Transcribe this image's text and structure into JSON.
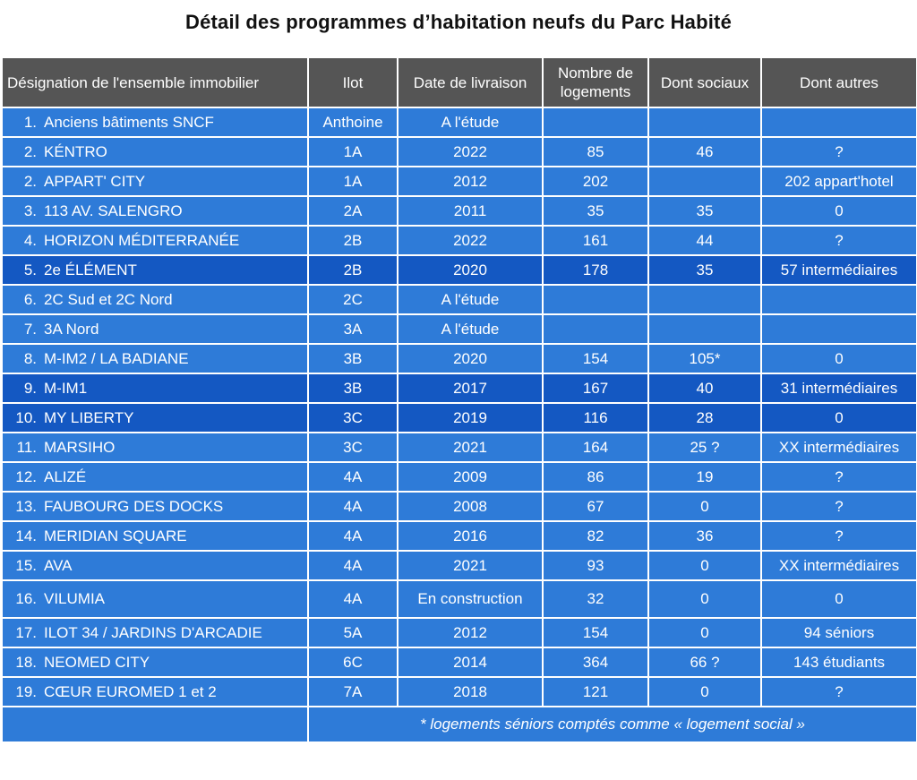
{
  "title": "Détail des programmes d’habitation neufs du Parc Habité",
  "headers": {
    "designation": "Désignation de l'ensemble immobilier",
    "ilot": "Ilot",
    "date": "Date de livraison",
    "nombre_line1": "Nombre de",
    "nombre_line2": "logements",
    "sociaux": "Dont sociaux",
    "autres": "Dont autres"
  },
  "rows": [
    {
      "num": "1.",
      "name": "Anciens bâtiments SNCF",
      "ilot": "Anthoine",
      "date": "A l'étude",
      "nombre": "",
      "sociaux": "",
      "autres": ""
    },
    {
      "num": "2.",
      "name": "KÉNTRO",
      "ilot": "1A",
      "date": "2022",
      "nombre": "85",
      "sociaux": "46",
      "autres": "?"
    },
    {
      "num": "2.",
      "name": "APPART' CITY",
      "ilot": "1A",
      "date": "2012",
      "nombre": "202",
      "sociaux": "",
      "autres": "202 appart'hotel"
    },
    {
      "num": "3.",
      "name": "113 AV. SALENGRO",
      "ilot": "2A",
      "date": "2011",
      "nombre": "35",
      "sociaux": "35",
      "autres": "0"
    },
    {
      "num": "4.",
      "name": "HORIZON MÉDITERRANÉE",
      "ilot": "2B",
      "date": "2022",
      "nombre": "161",
      "sociaux": "44",
      "autres": "?"
    },
    {
      "num": "5.",
      "name": "2e ÉLÉMENT",
      "ilot": "2B",
      "date": "2020",
      "nombre": "178",
      "sociaux": "35",
      "autres": "57 intermédiaires"
    },
    {
      "num": "6.",
      "name": "2C Sud et 2C Nord",
      "ilot": "2C",
      "date": "A l'étude",
      "nombre": "",
      "sociaux": "",
      "autres": ""
    },
    {
      "num": "7.",
      "name": "3A Nord",
      "ilot": "3A",
      "date": "A l'étude",
      "nombre": "",
      "sociaux": "",
      "autres": ""
    },
    {
      "num": "8.",
      "name": "M-IM2 / LA BADIANE",
      "ilot": "3B",
      "date": "2020",
      "nombre": "154",
      "sociaux": "105*",
      "autres": "0"
    },
    {
      "num": "9.",
      "name": "M-IM1",
      "ilot": "3B",
      "date": "2017",
      "nombre": "167",
      "sociaux": "40",
      "autres": "31 intermédiaires"
    },
    {
      "num": "10.",
      "name": "MY LIBERTY",
      "ilot": "3C",
      "date": "2019",
      "nombre": "116",
      "sociaux": "28",
      "autres": "0"
    },
    {
      "num": "11.",
      "name": "MARSIHO",
      "ilot": "3C",
      "date": "2021",
      "nombre": "164",
      "sociaux": "25 ?",
      "autres": "XX intermédiaires"
    },
    {
      "num": "12.",
      "name": "ALIZÉ",
      "ilot": "4A",
      "date": "2009",
      "nombre": "86",
      "sociaux": "19",
      "autres": "?"
    },
    {
      "num": "13.",
      "name": "FAUBOURG DES DOCKS",
      "ilot": "4A",
      "date": "2008",
      "nombre": "67",
      "sociaux": "0",
      "autres": "?"
    },
    {
      "num": "14.",
      "name": "MERIDIAN SQUARE",
      "ilot": "4A",
      "date": "2016",
      "nombre": "82",
      "sociaux": "36",
      "autres": "?"
    },
    {
      "num": "15.",
      "name": "AVA",
      "ilot": "4A",
      "date": "2021",
      "nombre": "93",
      "sociaux": "0",
      "autres": "XX intermédiaires"
    },
    {
      "num": "16.",
      "name": "VILUMIA",
      "ilot": "4A",
      "date": "En construction",
      "nombre": "32",
      "sociaux": "0",
      "autres": "0"
    },
    {
      "num": "17.",
      "name": "ILOT 34 / JARDINS D'ARCADIE",
      "ilot": "5A",
      "date": "2012",
      "nombre": "154",
      "sociaux": "0",
      "autres": "94 séniors"
    },
    {
      "num": "18.",
      "name": "NEOMED CITY",
      "ilot": "6C",
      "date": "2014",
      "nombre": "364",
      "sociaux": "66 ?",
      "autres": "143 étudiants"
    },
    {
      "num": "19.",
      "name": "CŒUR EUROMED 1 et 2",
      "ilot": "7A",
      "date": "2018",
      "nombre": "121",
      "sociaux": "0",
      "autres": "?"
    }
  ],
  "footnote": "* logements séniors comptés comme « logement social »",
  "colors": {
    "header_bg": "#555555",
    "row_bg": "#2e7bd8",
    "highlight_row_bg": "#1458c2",
    "text": "#ffffff"
  },
  "highlighted_rows": [
    5,
    9,
    10
  ]
}
